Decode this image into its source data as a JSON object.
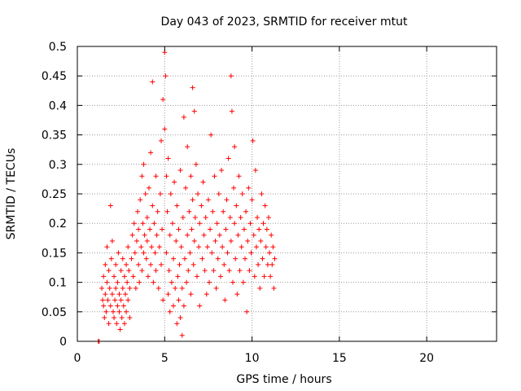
{
  "chart_data": {
    "type": "scatter",
    "title": "Day 043 of 2023, SRMTID for receiver mtut",
    "xlabel": "GPS time / hours",
    "ylabel": "SRMTID / TECUs",
    "xlim": [
      0,
      24
    ],
    "ylim": [
      0,
      0.5
    ],
    "xticks": [
      0,
      5,
      10,
      15,
      20
    ],
    "yticks": [
      0,
      0.05,
      0.1,
      0.15,
      0.2,
      0.25,
      0.3,
      0.35,
      0.4,
      0.45,
      0.5
    ],
    "xtick_labels": [
      "0",
      "5",
      "10",
      "15",
      "20"
    ],
    "ytick_labels": [
      "0",
      "0.05",
      "0.1",
      "0.15",
      "0.2",
      "0.25",
      "0.3",
      "0.35",
      "0.4",
      "0.45",
      "0.5"
    ],
    "grid": true,
    "marker": "+",
    "color": "#ff0000",
    "series": [
      {
        "points": [
          [
            1.2,
            0.0
          ],
          [
            1.25,
            0.0
          ],
          [
            1.4,
            0.09
          ],
          [
            1.45,
            0.07
          ],
          [
            1.5,
            0.06
          ],
          [
            1.5,
            0.11
          ],
          [
            1.55,
            0.04
          ],
          [
            1.6,
            0.08
          ],
          [
            1.6,
            0.13
          ],
          [
            1.65,
            0.05
          ],
          [
            1.7,
            0.1
          ],
          [
            1.7,
            0.16
          ],
          [
            1.75,
            0.07
          ],
          [
            1.8,
            0.03
          ],
          [
            1.8,
            0.12
          ],
          [
            1.85,
            0.09
          ],
          [
            1.9,
            0.06
          ],
          [
            1.9,
            0.23
          ],
          [
            1.95,
            0.14
          ],
          [
            2.0,
            0.08
          ],
          [
            2.0,
            0.17
          ],
          [
            2.05,
            0.05
          ],
          [
            2.1,
            0.11
          ],
          [
            2.1,
            0.04
          ],
          [
            2.15,
            0.07
          ],
          [
            2.2,
            0.13
          ],
          [
            2.2,
            0.09
          ],
          [
            2.25,
            0.03
          ],
          [
            2.3,
            0.06
          ],
          [
            2.3,
            0.1
          ],
          [
            2.35,
            0.15
          ],
          [
            2.4,
            0.05
          ],
          [
            2.4,
            0.08
          ],
          [
            2.45,
            0.02
          ],
          [
            2.5,
            0.12
          ],
          [
            2.5,
            0.07
          ],
          [
            2.55,
            0.04
          ],
          [
            2.6,
            0.09
          ],
          [
            2.6,
            0.14
          ],
          [
            2.65,
            0.06
          ],
          [
            2.7,
            0.03
          ],
          [
            2.7,
            0.11
          ],
          [
            2.75,
            0.08
          ],
          [
            2.8,
            0.05
          ],
          [
            2.8,
            0.13
          ],
          [
            2.85,
            0.1
          ],
          [
            2.9,
            0.07
          ],
          [
            2.9,
            0.16
          ],
          [
            2.95,
            0.12
          ],
          [
            3.0,
            0.09
          ],
          [
            3.0,
            0.04
          ],
          [
            3.1,
            0.14
          ],
          [
            3.15,
            0.18
          ],
          [
            3.2,
            0.11
          ],
          [
            3.25,
            0.2
          ],
          [
            3.3,
            0.15
          ],
          [
            3.35,
            0.09
          ],
          [
            3.4,
            0.17
          ],
          [
            3.45,
            0.22
          ],
          [
            3.5,
            0.13
          ],
          [
            3.5,
            0.19
          ],
          [
            3.55,
            0.1
          ],
          [
            3.6,
            0.24
          ],
          [
            3.65,
            0.16
          ],
          [
            3.7,
            0.12
          ],
          [
            3.7,
            0.28
          ],
          [
            3.75,
            0.2
          ],
          [
            3.8,
            0.15
          ],
          [
            3.8,
            0.3
          ],
          [
            3.85,
            0.18
          ],
          [
            3.9,
            0.25
          ],
          [
            3.95,
            0.14
          ],
          [
            4.0,
            0.21
          ],
          [
            4.0,
            0.17
          ],
          [
            4.05,
            0.11
          ],
          [
            4.1,
            0.26
          ],
          [
            4.15,
            0.19
          ],
          [
            4.2,
            0.13
          ],
          [
            4.2,
            0.32
          ],
          [
            4.25,
            0.16
          ],
          [
            4.3,
            0.44
          ],
          [
            4.3,
            0.23
          ],
          [
            4.35,
            0.1
          ],
          [
            4.4,
            0.2
          ],
          [
            4.45,
            0.15
          ],
          [
            4.5,
            0.28
          ],
          [
            4.5,
            0.12
          ],
          [
            4.55,
            0.18
          ],
          [
            4.6,
            0.22
          ],
          [
            4.65,
            0.09
          ],
          [
            4.7,
            0.16
          ],
          [
            4.75,
            0.25
          ],
          [
            4.8,
            0.13
          ],
          [
            4.8,
            0.34
          ],
          [
            4.85,
            0.19
          ],
          [
            4.9,
            0.07
          ],
          [
            4.9,
            0.41
          ],
          [
            5.0,
            0.49
          ],
          [
            5.0,
            0.36
          ],
          [
            5.05,
            0.45
          ],
          [
            5.1,
            0.28
          ],
          [
            5.1,
            0.15
          ],
          [
            5.15,
            0.22
          ],
          [
            5.2,
            0.08
          ],
          [
            5.2,
            0.31
          ],
          [
            5.25,
            0.12
          ],
          [
            5.3,
            0.18
          ],
          [
            5.3,
            0.05
          ],
          [
            5.35,
            0.25
          ],
          [
            5.4,
            0.1
          ],
          [
            5.45,
            0.2
          ],
          [
            5.5,
            0.06
          ],
          [
            5.5,
            0.14
          ],
          [
            5.55,
            0.27
          ],
          [
            5.6,
            0.09
          ],
          [
            5.65,
            0.17
          ],
          [
            5.7,
            0.03
          ],
          [
            5.7,
            0.23
          ],
          [
            5.75,
            0.11
          ],
          [
            5.8,
            0.07
          ],
          [
            5.8,
            0.19
          ],
          [
            5.85,
            0.13
          ],
          [
            5.9,
            0.04
          ],
          [
            5.9,
            0.29
          ],
          [
            5.95,
            0.16
          ],
          [
            6.0,
            0.01
          ],
          [
            6.0,
            0.09
          ],
          [
            6.05,
            0.21
          ],
          [
            6.1,
            0.06
          ],
          [
            6.1,
            0.38
          ],
          [
            6.15,
            0.14
          ],
          [
            6.2,
            0.26
          ],
          [
            6.25,
            0.1
          ],
          [
            6.3,
            0.18
          ],
          [
            6.3,
            0.33
          ],
          [
            6.35,
            0.12
          ],
          [
            6.4,
            0.22
          ],
          [
            6.45,
            0.15
          ],
          [
            6.5,
            0.28
          ],
          [
            6.5,
            0.08
          ],
          [
            6.55,
            0.19
          ],
          [
            6.6,
            0.24
          ],
          [
            6.6,
            0.43
          ],
          [
            6.65,
            0.13
          ],
          [
            6.7,
            0.39
          ],
          [
            6.7,
            0.17
          ],
          [
            6.75,
            0.21
          ],
          [
            6.8,
            0.3
          ],
          [
            6.85,
            0.11
          ],
          [
            6.9,
            0.25
          ],
          [
            6.95,
            0.16
          ],
          [
            7.0,
            0.2
          ],
          [
            7.0,
            0.06
          ],
          [
            7.1,
            0.23
          ],
          [
            7.15,
            0.14
          ],
          [
            7.2,
            0.27
          ],
          [
            7.25,
            0.18
          ],
          [
            7.3,
            0.12
          ],
          [
            7.35,
            0.21
          ],
          [
            7.4,
            0.08
          ],
          [
            7.45,
            0.16
          ],
          [
            7.5,
            0.24
          ],
          [
            7.55,
            0.1
          ],
          [
            7.6,
            0.19
          ],
          [
            7.65,
            0.35
          ],
          [
            7.7,
            0.15
          ],
          [
            7.75,
            0.22
          ],
          [
            7.8,
            0.12
          ],
          [
            7.85,
            0.28
          ],
          [
            7.9,
            0.17
          ],
          [
            7.95,
            0.09
          ],
          [
            8.0,
            0.2
          ],
          [
            8.05,
            0.14
          ],
          [
            8.1,
            0.25
          ],
          [
            8.15,
            0.18
          ],
          [
            8.2,
            0.11
          ],
          [
            8.25,
            0.29
          ],
          [
            8.3,
            0.16
          ],
          [
            8.35,
            0.22
          ],
          [
            8.4,
            0.13
          ],
          [
            8.45,
            0.07
          ],
          [
            8.5,
            0.19
          ],
          [
            8.55,
            0.24
          ],
          [
            8.6,
            0.15
          ],
          [
            8.65,
            0.31
          ],
          [
            8.7,
            0.12
          ],
          [
            8.75,
            0.21
          ],
          [
            8.8,
            0.45
          ],
          [
            8.8,
            0.17
          ],
          [
            8.85,
            0.39
          ],
          [
            8.9,
            0.1
          ],
          [
            8.95,
            0.26
          ],
          [
            9.0,
            0.2
          ],
          [
            9.0,
            0.33
          ],
          [
            9.05,
            0.14
          ],
          [
            9.1,
            0.23
          ],
          [
            9.15,
            0.08
          ],
          [
            9.2,
            0.18
          ],
          [
            9.25,
            0.28
          ],
          [
            9.3,
            0.12
          ],
          [
            9.35,
            0.21
          ],
          [
            9.4,
            0.16
          ],
          [
            9.45,
            0.25
          ],
          [
            9.5,
            0.1
          ],
          [
            9.55,
            0.19
          ],
          [
            9.6,
            0.14
          ],
          [
            9.65,
            0.22
          ],
          [
            9.7,
            0.05
          ],
          [
            9.75,
            0.17
          ],
          [
            9.8,
            0.26
          ],
          [
            9.85,
            0.12
          ],
          [
            9.9,
            0.2
          ],
          [
            9.95,
            0.15
          ],
          [
            10.0,
            0.24
          ],
          [
            10.05,
            0.34
          ],
          [
            10.1,
            0.18
          ],
          [
            10.15,
            0.11
          ],
          [
            10.2,
            0.29
          ],
          [
            10.25,
            0.16
          ],
          [
            10.3,
            0.21
          ],
          [
            10.35,
            0.13
          ],
          [
            10.4,
            0.19
          ],
          [
            10.45,
            0.09
          ],
          [
            10.5,
            0.17
          ],
          [
            10.55,
            0.25
          ],
          [
            10.6,
            0.14
          ],
          [
            10.65,
            0.2
          ],
          [
            10.7,
            0.11
          ],
          [
            10.75,
            0.23
          ],
          [
            10.8,
            0.16
          ],
          [
            10.85,
            0.19
          ],
          [
            10.9,
            0.13
          ],
          [
            10.95,
            0.21
          ],
          [
            11.0,
            0.15
          ],
          [
            11.05,
            0.11
          ],
          [
            11.1,
            0.18
          ],
          [
            11.15,
            0.13
          ],
          [
            11.2,
            0.16
          ],
          [
            11.25,
            0.09
          ],
          [
            11.3,
            0.14
          ]
        ]
      }
    ]
  }
}
